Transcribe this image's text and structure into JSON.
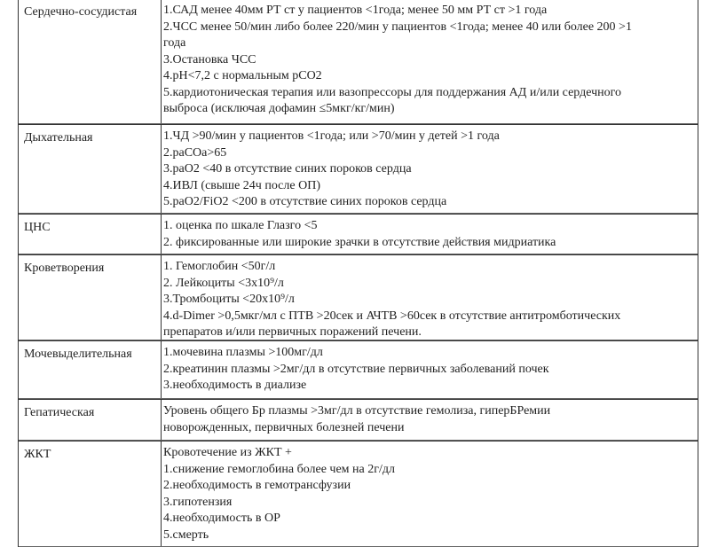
{
  "rows": [
    {
      "label": "Сердечно-сосудистая",
      "lines": [
        "1.САД менее 40мм РТ ст у пациентов <1года; менее 50 мм РТ ст >1 года",
        "2.ЧСС менее 50/мин либо более 220/мин у пациентов <1года; менее 40 или более 200 >1",
        "года",
        "3.Остановка ЧСС",
        "4.pH<7,2 с нормальным pCO2",
        "5.кардиотоническая терапия или вазопрессоры для поддержания АД и/или сердечного",
        "выброса (исключая дофамин ≤5мкг/кг/мин)"
      ]
    },
    {
      "label": "Дыхательная",
      "lines": [
        "1.ЧД >90/мин у пациентов <1года; или  >70/мин у детей >1 года",
        "2.paCOa>65",
        "3.paO2 <40 в отсутствие синих пороков сердца",
        "4.ИВЛ (свыше 24ч после ОП)",
        "5.paO2/FiO2 <200 в отсутствие синих пороков сердца"
      ]
    },
    {
      "label": "ЦНС",
      "lines": [
        "1. оценка по шкале Глазго <5",
        "2. фиксированные или широкие зрачки в отсутствие действия мидриатика"
      ]
    },
    {
      "label": "Кроветворения",
      "lines": [
        "1. Гемоглобин <50г/л",
        "2. Лейкоциты <3х10⁹/л",
        "3.Тромбоциты <20х10⁹/л",
        "4.d-Dimer >0,5мкг/мл с ПТВ >20сек и АЧТВ >60сек в отсутствие антитромботических",
        "препаратов и/или первичных поражений печени."
      ]
    },
    {
      "label": "Мочевыделительная",
      "lines": [
        "1.мочевина плазмы >100мг/дл",
        "2.креатинин плазмы >2мг/дл в отсутствие первичных заболеваний почек",
        "3.необходимость в диализе"
      ]
    },
    {
      "label": "Гепатическая",
      "lines": [
        "Уровень общего Бр плазмы >3мг/дл в отсутствие гемолиза, гиперБРемии",
        "новорожденных, первичных болезней печени"
      ]
    },
    {
      "label": "ЖКТ",
      "lines": [
        "Кровотечение из ЖКТ +",
        "1.снижение гемоглобина более чем на 2г/дл",
        "2.необходимость в гемотрансфузии",
        "3.гипотензия",
        "4.необходимость в ОР",
        "5.смерть"
      ]
    }
  ]
}
